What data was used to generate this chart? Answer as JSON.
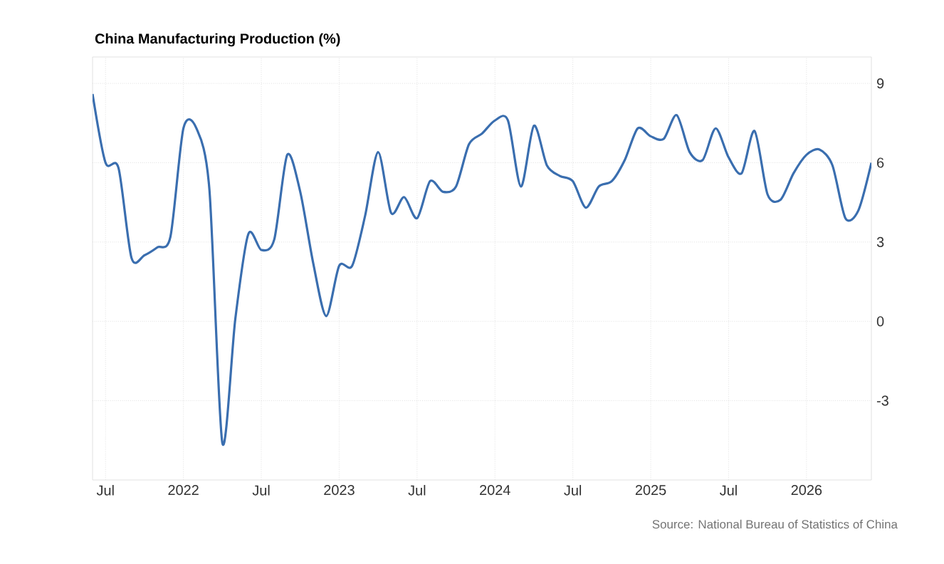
{
  "chart_data": {
    "type": "line",
    "title": "China Manufacturing Production (%)",
    "x": [
      "2021-06",
      "2021-07",
      "2021-08",
      "2021-09",
      "2021-10",
      "2021-11",
      "2021-12",
      "2022-01",
      "2022-02",
      "2022-03",
      "2022-04",
      "2022-05",
      "2022-06",
      "2022-07",
      "2022-08",
      "2022-09",
      "2022-10",
      "2022-11",
      "2022-12",
      "2023-01",
      "2023-02",
      "2023-03",
      "2023-04",
      "2023-05",
      "2023-06",
      "2023-07",
      "2023-08",
      "2023-09",
      "2023-10",
      "2023-11",
      "2023-12",
      "2024-01",
      "2024-02",
      "2024-03",
      "2024-04",
      "2024-05",
      "2024-06",
      "2024-07",
      "2024-08",
      "2024-09",
      "2024-10",
      "2024-11",
      "2024-12",
      "2025-01",
      "2025-02",
      "2025-03",
      "2025-04",
      "2025-05",
      "2025-06",
      "2025-07",
      "2025-08",
      "2025-09",
      "2025-10",
      "2025-11",
      "2025-12",
      "2026-01",
      "2026-02",
      "2026-03",
      "2026-04",
      "2026-05",
      "2026-06"
    ],
    "series": [
      {
        "color": "#3a6eaf",
        "values": [
          8.6,
          6.0,
          5.8,
          2.4,
          2.5,
          2.8,
          3.2,
          7.3,
          7.3,
          5.0,
          -4.6,
          0.1,
          3.3,
          2.7,
          3.1,
          6.3,
          4.9,
          2.2,
          0.2,
          2.1,
          2.1,
          4.0,
          6.4,
          4.1,
          4.7,
          3.9,
          5.3,
          4.9,
          5.1,
          6.7,
          7.1,
          7.6,
          7.6,
          5.1,
          7.4,
          5.9,
          5.5,
          5.3,
          4.3,
          5.1,
          5.3,
          6.1,
          7.3,
          7.0,
          6.9,
          7.8,
          6.4,
          6.1,
          7.3,
          6.2,
          5.6,
          7.2,
          4.8,
          4.6,
          5.6,
          6.3,
          6.5,
          5.9,
          3.9,
          4.2,
          6.0
        ]
      }
    ],
    "xlim": [
      "2021-06",
      "2026-06"
    ],
    "xticks": [
      {
        "value": "2021-07",
        "label": "Jul"
      },
      {
        "value": "2022-01",
        "label": "2022"
      },
      {
        "value": "2022-07",
        "label": "Jul"
      },
      {
        "value": "2023-01",
        "label": "2023"
      },
      {
        "value": "2023-07",
        "label": "Jul"
      },
      {
        "value": "2024-01",
        "label": "2024"
      },
      {
        "value": "2024-07",
        "label": "Jul"
      },
      {
        "value": "2025-01",
        "label": "2025"
      },
      {
        "value": "2025-07",
        "label": "Jul"
      },
      {
        "value": "2026-01",
        "label": "2026"
      }
    ],
    "ylim": [
      -6,
      10
    ],
    "yticks": [
      -3,
      0,
      3,
      6,
      9
    ],
    "grid": true,
    "marker": "none",
    "line_style": "solid",
    "annotations": [
      "Source: National Bureau of Statistics of China"
    ]
  }
}
